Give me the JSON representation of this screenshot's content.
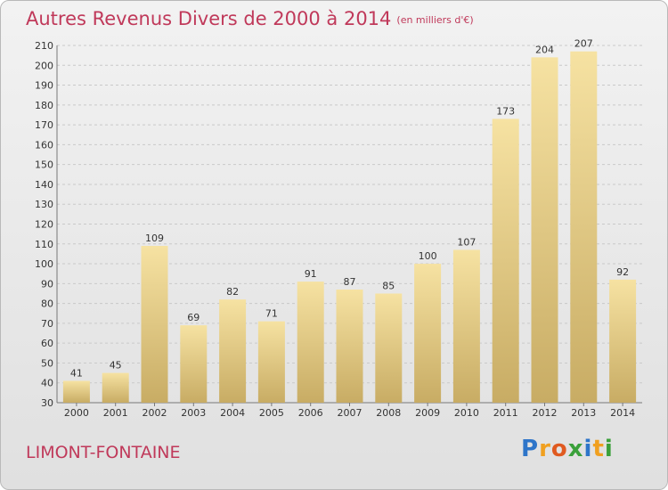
{
  "title": "Autres Revenus Divers de 2000 à 2014",
  "unit_note": "(en milliers d'€)",
  "town": "LIMONT-FONTAINE",
  "logo": {
    "letters": [
      "P",
      "r",
      "o",
      "x",
      "i",
      "t",
      "i"
    ],
    "colors": [
      "#2e75c9",
      "#f0a020",
      "#e05a20",
      "#3aa03a",
      "#2e75c9",
      "#f0a020",
      "#3aa03a"
    ]
  },
  "colors": {
    "title": "#c0395a",
    "bar_light": "#f6e2a2",
    "bar_dark": "#c8ac64",
    "grid": "#c9c9c9"
  },
  "chart_data": {
    "type": "bar",
    "categories": [
      "2000",
      "2001",
      "2002",
      "2003",
      "2004",
      "2005",
      "2006",
      "2007",
      "2008",
      "2009",
      "2010",
      "2011",
      "2012",
      "2013",
      "2014"
    ],
    "values": [
      41,
      45,
      109,
      69,
      82,
      71,
      91,
      87,
      85,
      100,
      107,
      173,
      204,
      207,
      92
    ],
    "title": "Autres Revenus Divers de 2000 à 2014",
    "ylim": [
      30,
      210
    ],
    "yticks": [
      30,
      40,
      50,
      60,
      70,
      80,
      90,
      100,
      110,
      120,
      130,
      140,
      150,
      160,
      170,
      180,
      190,
      200,
      210
    ],
    "grid": "horizontal dashed",
    "data_labels": true
  }
}
